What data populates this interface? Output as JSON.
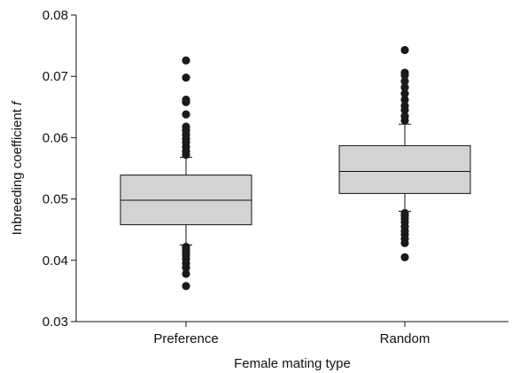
{
  "chart_data": {
    "type": "box",
    "title": "",
    "xlabel": "Female mating type",
    "ylabel_main": "Inbreeding coefficient ",
    "ylabel_italic": "f",
    "ylim": [
      0.03,
      0.08
    ],
    "yticks": [
      "0.03",
      "0.04",
      "0.05",
      "0.06",
      "0.07",
      "0.08"
    ],
    "categories": [
      "Preference",
      "Random"
    ],
    "grid": false,
    "box_fill": "#d3d3d3",
    "outlier_color": "#1a1a1a",
    "series": [
      {
        "category": "Preference",
        "whisker_low": 0.0425,
        "q1": 0.0458,
        "median": 0.0498,
        "q3": 0.0539,
        "whisker_high": 0.0568,
        "outliers": [
          0.0358,
          0.0378,
          0.0388,
          0.0395,
          0.0402,
          0.0408,
          0.0413,
          0.0418,
          0.0422,
          0.0572,
          0.0578,
          0.0585,
          0.0592,
          0.0598,
          0.0605,
          0.0612,
          0.0618,
          0.0638,
          0.0658,
          0.0662,
          0.0698,
          0.0726
        ]
      },
      {
        "category": "Random",
        "whisker_low": 0.048,
        "q1": 0.0509,
        "median": 0.0545,
        "q3": 0.0587,
        "whisker_high": 0.0622,
        "outliers": [
          0.0405,
          0.0428,
          0.0435,
          0.0442,
          0.0448,
          0.0455,
          0.0462,
          0.0468,
          0.0473,
          0.0477,
          0.0628,
          0.0635,
          0.0645,
          0.0652,
          0.0662,
          0.0672,
          0.0682,
          0.0692,
          0.0702,
          0.0706,
          0.0743
        ]
      }
    ]
  }
}
